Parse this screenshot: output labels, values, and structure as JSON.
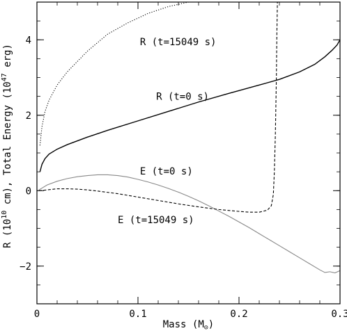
{
  "chart_data": {
    "type": "line",
    "xlabel": "Mass (M",
    "xlabel_sub": "⊙",
    "xlabel_end": ")",
    "ylabel": "R (10",
    "ylabel_exp1": "10",
    "ylabel_mid": " cm),",
    "ylabel2": "Total Energy (10",
    "ylabel_exp2": "47",
    "ylabel_end2": " erg)",
    "xlim": [
      0,
      0.3
    ],
    "ylim": [
      -3,
      5
    ],
    "x_ticks": [
      0,
      0.1,
      0.2,
      0.3
    ],
    "x_tick_labels": [
      "0",
      "0.1",
      "0.2",
      "0.3"
    ],
    "y_ticks": [
      -2,
      0,
      2,
      4
    ],
    "y_tick_labels": [
      "−2",
      "0",
      "2",
      "4"
    ],
    "grid": false,
    "series": [
      {
        "name": "R (t=15049 s)",
        "style": "dotted",
        "color": "#000000",
        "x": [
          0.003,
          0.005,
          0.008,
          0.012,
          0.02,
          0.03,
          0.05,
          0.07,
          0.09,
          0.11,
          0.13,
          0.15
        ],
        "y": [
          1.2,
          1.7,
          2.1,
          2.4,
          2.8,
          3.15,
          3.7,
          4.15,
          4.45,
          4.7,
          4.88,
          5.0
        ]
      },
      {
        "name": "R (t=0 s)",
        "style": "solid",
        "color": "#000000",
        "x": [
          0.003,
          0.005,
          0.008,
          0.012,
          0.02,
          0.03,
          0.05,
          0.07,
          0.1,
          0.13,
          0.16,
          0.19,
          0.22,
          0.24,
          0.26,
          0.275,
          0.285,
          0.292,
          0.297,
          0.3
        ],
        "y": [
          0.5,
          0.7,
          0.85,
          0.97,
          1.1,
          1.22,
          1.42,
          1.6,
          1.85,
          2.1,
          2.35,
          2.58,
          2.8,
          2.95,
          3.15,
          3.35,
          3.55,
          3.72,
          3.86,
          4.0
        ]
      },
      {
        "name": "E (t=0 s)",
        "style": "solid",
        "color": "#888888",
        "x": [
          0.002,
          0.01,
          0.02,
          0.03,
          0.04,
          0.05,
          0.06,
          0.07,
          0.08,
          0.09,
          0.1,
          0.11,
          0.12,
          0.13,
          0.14,
          0.15,
          0.16,
          0.17,
          0.18,
          0.19,
          0.2,
          0.21,
          0.22,
          0.23,
          0.24,
          0.25,
          0.26,
          0.27,
          0.28,
          0.285,
          0.29,
          0.295,
          0.3
        ],
        "y": [
          0.02,
          0.15,
          0.25,
          0.32,
          0.37,
          0.4,
          0.42,
          0.42,
          0.4,
          0.36,
          0.3,
          0.23,
          0.15,
          0.06,
          -0.04,
          -0.15,
          -0.27,
          -0.4,
          -0.54,
          -0.68,
          -0.83,
          -0.98,
          -1.14,
          -1.3,
          -1.46,
          -1.62,
          -1.78,
          -1.94,
          -2.1,
          -2.17,
          -2.15,
          -2.18,
          -2.12
        ]
      },
      {
        "name": "E (t=15049 s)",
        "style": "dashed",
        "color": "#000000",
        "x": [
          0.002,
          0.01,
          0.02,
          0.03,
          0.04,
          0.05,
          0.06,
          0.08,
          0.1,
          0.12,
          0.14,
          0.16,
          0.18,
          0.2,
          0.21,
          0.22,
          0.228,
          0.232,
          0.234,
          0.235,
          0.236,
          0.237,
          0.2375,
          0.238
        ],
        "y": [
          0.0,
          0.02,
          0.05,
          0.05,
          0.04,
          0.02,
          -0.01,
          -0.08,
          -0.17,
          -0.26,
          -0.35,
          -0.43,
          -0.5,
          -0.55,
          -0.57,
          -0.57,
          -0.52,
          -0.4,
          -0.1,
          0.5,
          1.5,
          3.0,
          4.2,
          5.0
        ]
      }
    ],
    "annotations": [
      {
        "text": "R (t=15049 s)",
        "x": 0.102,
        "y": 3.95
      },
      {
        "text": "R (t=0 s)",
        "x": 0.118,
        "y": 2.5
      },
      {
        "text": "E (t=0 s)",
        "x": 0.102,
        "y": 0.52
      },
      {
        "text": "E (t=15049 s)",
        "x": 0.08,
        "y": -0.77
      }
    ]
  }
}
